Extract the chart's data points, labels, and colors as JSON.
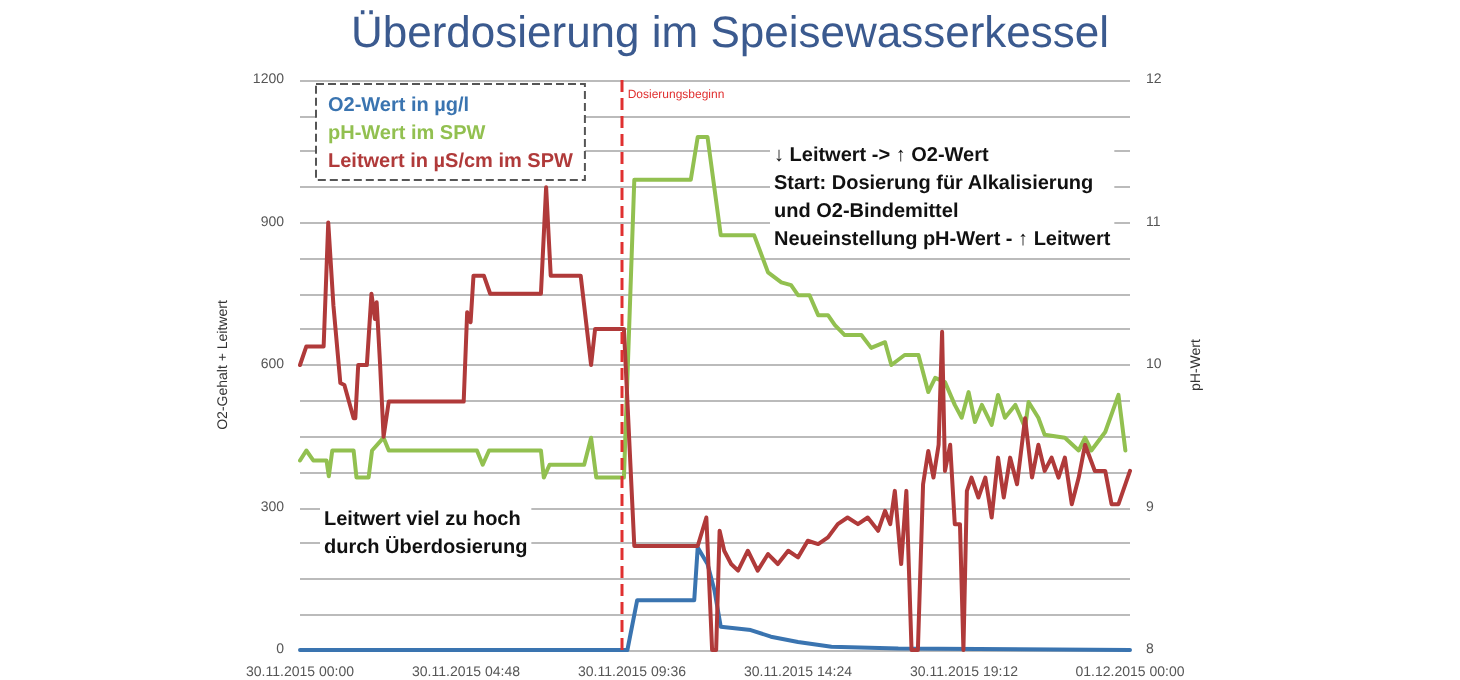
{
  "chart_data": {
    "type": "line",
    "title": "Überdosierung im Speisewasserkessel",
    "ylabel": "O2-Gehalt + Leitwert",
    "y2label": "pH-Wert",
    "xlim": [
      "2015-11-30T00:00",
      "2015-12-01T00:00"
    ],
    "xticks": [
      {
        "value": "2015-11-30T00:00",
        "label": "30.11.2015 00:00"
      },
      {
        "value": "2015-11-30T04:48",
        "label": "30.11.2015 04:48"
      },
      {
        "value": "2015-11-30T09:36",
        "label": "30.11.2015 09:36"
      },
      {
        "value": "2015-11-30T14:24",
        "label": "30.11.2015 14:24"
      },
      {
        "value": "2015-11-30T19:12",
        "label": "30.11.2015 19:12"
      },
      {
        "value": "2015-12-01T00:00",
        "label": "01.12.2015 00:00"
      }
    ],
    "ylim": [
      0,
      1200
    ],
    "yticks": [
      0,
      {
        "value": 75,
        "label": null
      },
      {
        "value": 150,
        "label": null
      },
      {
        "value": 225,
        "label": null
      },
      300,
      {
        "value": 375,
        "label": null
      },
      {
        "value": 450,
        "label": null
      },
      {
        "value": 525,
        "label": null
      },
      600,
      {
        "value": 675,
        "label": null
      },
      {
        "value": 750,
        "label": null
      },
      {
        "value": 825,
        "label": null
      },
      900,
      {
        "value": 975,
        "label": null
      },
      {
        "value": 1050,
        "label": null
      },
      {
        "value": 1125,
        "label": null
      },
      1200
    ],
    "y2lim": [
      8,
      12
    ],
    "y2ticks": [
      8,
      9,
      10,
      11,
      12
    ],
    "grid": "y",
    "legend": "top left",
    "marker": "none",
    "line_style": "solid",
    "series": [
      {
        "name": "O2-Wert in µg/l",
        "color": "#3a74b0",
        "x": [
          "2015-11-30T00:00",
          "2015-11-30T09:28",
          "2015-11-30T09:45",
          "2015-11-30T11:24",
          "2015-11-30T11:30",
          "2015-11-30T11:47",
          "2015-11-30T11:59",
          "2015-11-30T12:10",
          "2015-11-30T13:02",
          "2015-11-30T13:37",
          "2015-11-30T14:24",
          "2015-11-30T15:22",
          "2015-11-30T17:18",
          "2015-12-01T00:00"
        ],
        "values": [
          0,
          0,
          105,
          105,
          216,
          181,
          126,
          49,
          42,
          28,
          17,
          7,
          3,
          0
        ]
      },
      {
        "name": "pH-Wert im SPW",
        "color": "#92c050",
        "axis": "y2",
        "x": [
          "2015-11-30T00:00",
          "2015-11-30T00:11",
          "2015-11-30T00:23",
          "2015-11-30T00:46",
          "2015-11-30T00:50",
          "2015-11-30T00:56",
          "2015-11-30T01:33",
          "2015-11-30T01:38",
          "2015-11-30T01:59",
          "2015-11-30T02:05",
          "2015-11-30T02:25",
          "2015-11-30T02:34",
          "2015-11-30T05:07",
          "2015-11-30T05:17",
          "2015-11-30T05:28",
          "2015-11-30T06:58",
          "2015-11-30T07:03",
          "2015-11-30T07:13",
          "2015-11-30T08:13",
          "2015-11-30T08:25",
          "2015-11-30T08:34",
          "2015-11-30T09:13",
          "2015-11-30T09:22",
          "2015-11-30T09:40",
          "2015-11-30T11:18",
          "2015-11-30T11:30",
          "2015-11-30T11:47",
          "2015-11-30T12:10",
          "2015-11-30T13:08",
          "2015-11-30T13:32",
          "2015-11-30T13:55",
          "2015-11-30T14:12",
          "2015-11-30T14:24",
          "2015-11-30T14:44",
          "2015-11-30T14:59",
          "2015-11-30T15:16",
          "2015-11-30T15:28",
          "2015-11-30T15:45",
          "2015-11-30T16:14",
          "2015-11-30T16:31",
          "2015-11-30T16:55",
          "2015-11-30T17:06",
          "2015-11-30T17:29",
          "2015-11-30T17:53",
          "2015-11-30T18:10",
          "2015-11-30T18:22",
          "2015-11-30T18:39",
          "2015-11-30T18:56",
          "2015-11-30T19:08",
          "2015-11-30T19:20",
          "2015-11-30T19:31",
          "2015-11-30T19:43",
          "2015-11-30T20:00",
          "2015-11-30T20:11",
          "2015-11-30T20:23",
          "2015-11-30T20:41",
          "2015-11-30T20:58",
          "2015-11-30T21:04",
          "2015-11-30T21:21",
          "2015-11-30T21:32",
          "2015-11-30T22:07",
          "2015-11-30T22:31",
          "2015-11-30T22:42",
          "2015-11-30T22:53",
          "2015-11-30T23:17",
          "2015-11-30T23:40",
          "2015-11-30T23:52"
        ],
        "values": [
          9.33,
          9.4,
          9.33,
          9.33,
          9.22,
          9.4,
          9.4,
          9.21,
          9.21,
          9.4,
          9.49,
          9.4,
          9.4,
          9.3,
          9.4,
          9.4,
          9.21,
          9.3,
          9.3,
          9.49,
          9.21,
          9.21,
          9.21,
          11.3,
          11.3,
          11.6,
          11.6,
          10.91,
          10.91,
          10.65,
          10.58,
          10.56,
          10.49,
          10.49,
          10.35,
          10.35,
          10.28,
          10.21,
          10.21,
          10.12,
          10.16,
          10.0,
          10.07,
          10.07,
          9.81,
          9.91,
          9.88,
          9.72,
          9.63,
          9.81,
          9.6,
          9.72,
          9.58,
          9.79,
          9.63,
          9.72,
          9.56,
          9.74,
          9.63,
          9.51,
          9.49,
          9.4,
          9.49,
          9.4,
          9.53,
          9.79,
          9.4
        ]
      },
      {
        "name": "Leitwert in µS/cm im SPW",
        "color": "#b03a3a",
        "x": [
          "2015-11-30T00:00",
          "2015-11-30T00:11",
          "2015-11-30T00:41",
          "2015-11-30T00:49",
          "2015-11-30T00:58",
          "2015-11-30T01:10",
          "2015-11-30T01:17",
          "2015-11-30T01:33",
          "2015-11-30T01:36",
          "2015-11-30T01:41",
          "2015-11-30T01:56",
          "2015-11-30T02:04",
          "2015-11-30T02:10",
          "2015-11-30T02:13",
          "2015-11-30T02:19",
          "2015-11-30T02:25",
          "2015-11-30T02:34",
          "2015-11-30T04:44",
          "2015-11-30T04:50",
          "2015-11-30T04:56",
          "2015-11-30T05:01",
          "2015-11-30T05:19",
          "2015-11-30T05:30",
          "2015-11-30T06:58",
          "2015-11-30T07:07",
          "2015-11-30T07:15",
          "2015-11-30T08:07",
          "2015-11-30T08:25",
          "2015-11-30T08:32",
          "2015-11-30T09:22",
          "2015-11-30T09:40",
          "2015-11-30T11:30",
          "2015-11-30T11:45",
          "2015-11-30T11:55",
          "2015-11-30T12:02",
          "2015-11-30T12:08",
          "2015-11-30T12:16",
          "2015-11-30T12:28",
          "2015-11-30T12:40",
          "2015-11-30T12:57",
          "2015-11-30T13:14",
          "2015-11-30T13:32",
          "2015-11-30T13:49",
          "2015-11-30T14:07",
          "2015-11-30T14:24",
          "2015-11-30T14:41",
          "2015-11-30T14:59",
          "2015-11-30T15:16",
          "2015-11-30T15:33",
          "2015-11-30T15:50",
          "2015-11-30T16:08",
          "2015-11-30T16:25",
          "2015-11-30T16:43",
          "2015-11-30T16:55",
          "2015-11-30T17:04",
          "2015-11-30T17:12",
          "2015-11-30T17:23",
          "2015-11-30T17:32",
          "2015-11-30T17:41",
          "2015-11-30T17:52",
          "2015-11-30T18:01",
          "2015-11-30T18:10",
          "2015-11-30T18:19",
          "2015-11-30T18:28",
          "2015-11-30T18:34",
          "2015-11-30T18:39",
          "2015-11-30T18:48",
          "2015-11-30T18:56",
          "2015-11-30T19:05",
          "2015-11-30T19:11",
          "2015-11-30T19:17",
          "2015-11-30T19:25",
          "2015-11-30T19:37",
          "2015-11-30T19:49",
          "2015-11-30T20:00",
          "2015-11-30T20:11",
          "2015-11-30T20:21",
          "2015-11-30T20:32",
          "2015-11-30T20:44",
          "2015-11-30T20:58",
          "2015-11-30T21:10",
          "2015-11-30T21:21",
          "2015-11-30T21:32",
          "2015-11-30T21:44",
          "2015-11-30T21:56",
          "2015-11-30T22:07",
          "2015-11-30T22:19",
          "2015-11-30T22:31",
          "2015-11-30T22:42",
          "2015-11-30T22:59",
          "2015-11-30T23:17",
          "2015-11-30T23:28",
          "2015-11-30T23:40",
          "2015-12-01T00:00"
        ],
        "values": [
          600,
          639,
          639,
          900,
          725,
          562,
          558,
          488,
          488,
          600,
          600,
          750,
          697,
          732,
          600,
          449,
          523,
          523,
          711,
          690,
          788,
          788,
          750,
          750,
          974,
          788,
          788,
          600,
          676,
          676,
          219,
          219,
          279,
          0,
          0,
          251,
          209,
          181,
          167,
          209,
          167,
          202,
          181,
          209,
          195,
          230,
          223,
          237,
          265,
          279,
          265,
          279,
          251,
          293,
          265,
          335,
          181,
          335,
          0,
          0,
          349,
          419,
          363,
          432,
          670,
          377,
          432,
          265,
          265,
          0,
          335,
          363,
          321,
          363,
          279,
          405,
          321,
          405,
          349,
          488,
          363,
          432,
          377,
          405,
          363,
          405,
          307,
          363,
          432,
          377,
          377,
          307,
          307,
          377
        ]
      }
    ],
    "ref_lines": [
      {
        "axis": "x",
        "value": "2015-11-30T09:18",
        "label": "Dosierungsbeginn",
        "color": "#e03030",
        "line_style": "dashed"
      }
    ],
    "annotations": [
      "↓ Leitwert -> ↑ O2-Wert\nStart: Dosierung für Alkalisierung\nund O2-Bindemittel\nNeueinstellung pH-Wert - ↑ Leitwert",
      "Leitwert viel zu hoch\ndurch Überdosierung"
    ]
  }
}
